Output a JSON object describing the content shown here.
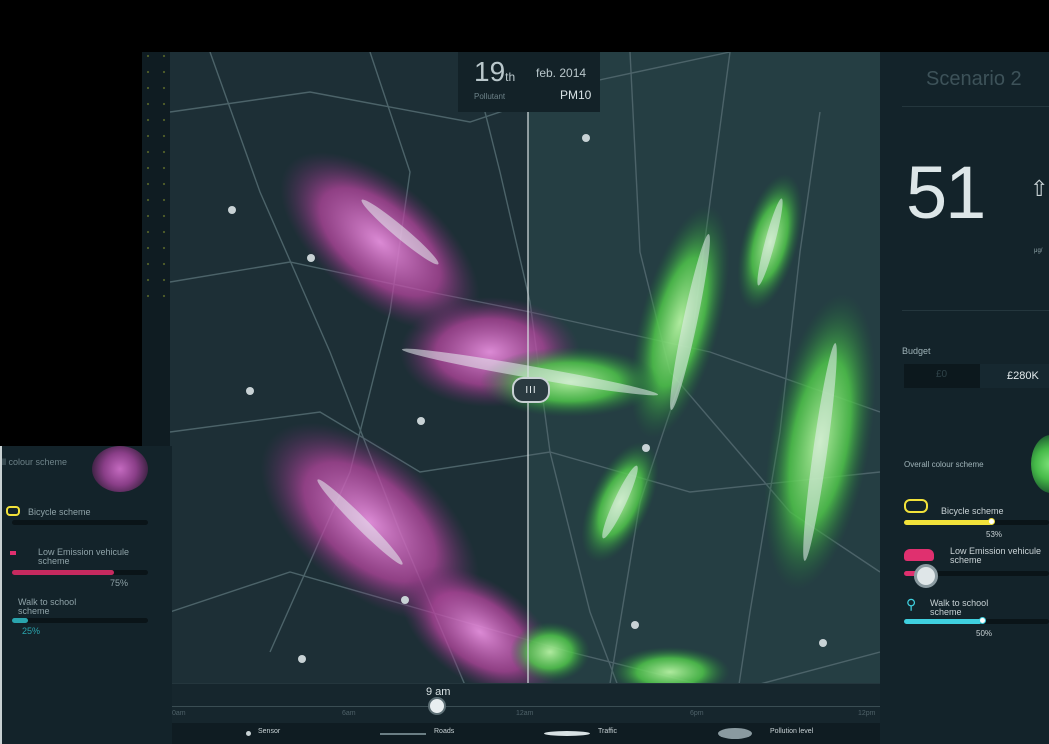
{
  "date": {
    "day": "19",
    "suffix": "th",
    "month_year": "feb. 2014",
    "pollutant_label": "Pollutant",
    "pollutant_value": "PM10"
  },
  "compare_handle": "III",
  "timeline": {
    "current": "9 am",
    "ticks": [
      "0am",
      "6am",
      "12am",
      "6pm",
      "12pm"
    ],
    "progress": 0.375
  },
  "legend": {
    "sensor": "Sensor",
    "roads": "Roads",
    "traffic": "Traffic",
    "pollution": "Pollution level"
  },
  "left_panel": {
    "colour_label": "ll colour scheme",
    "bicycle_label": "Bicycle scheme",
    "lev_label_1": "Low Emission vehicule",
    "lev_label_2": "scheme",
    "lev_percent": "75%",
    "lev_value": 0.75,
    "walk_label_1": "Walk to school",
    "walk_label_2": "scheme",
    "walk_percent": "25%",
    "walk_value": 0.25
  },
  "right_panel": {
    "title": "Scenario 2",
    "big_value": "51",
    "unit": "μg/",
    "budget_label": "Budget",
    "budget_min": "£0",
    "budget_value": "£280K",
    "colour_label": "Overall colour scheme",
    "bicycle_label": "Bicycle scheme",
    "bicycle_percent": "53%",
    "bicycle_value": 0.53,
    "lev_label_1": "Low Emission vehicule",
    "lev_label_2": "scheme",
    "walk_label_1": "Walk to school",
    "walk_label_2": "scheme",
    "walk_percent": "50%",
    "walk_value": 0.5
  },
  "colors": {
    "pink": "#c060b8",
    "green": "#5fd35a",
    "yellow": "#f2e23a",
    "magenta": "#e0306f",
    "cyan": "#3fd0df"
  }
}
